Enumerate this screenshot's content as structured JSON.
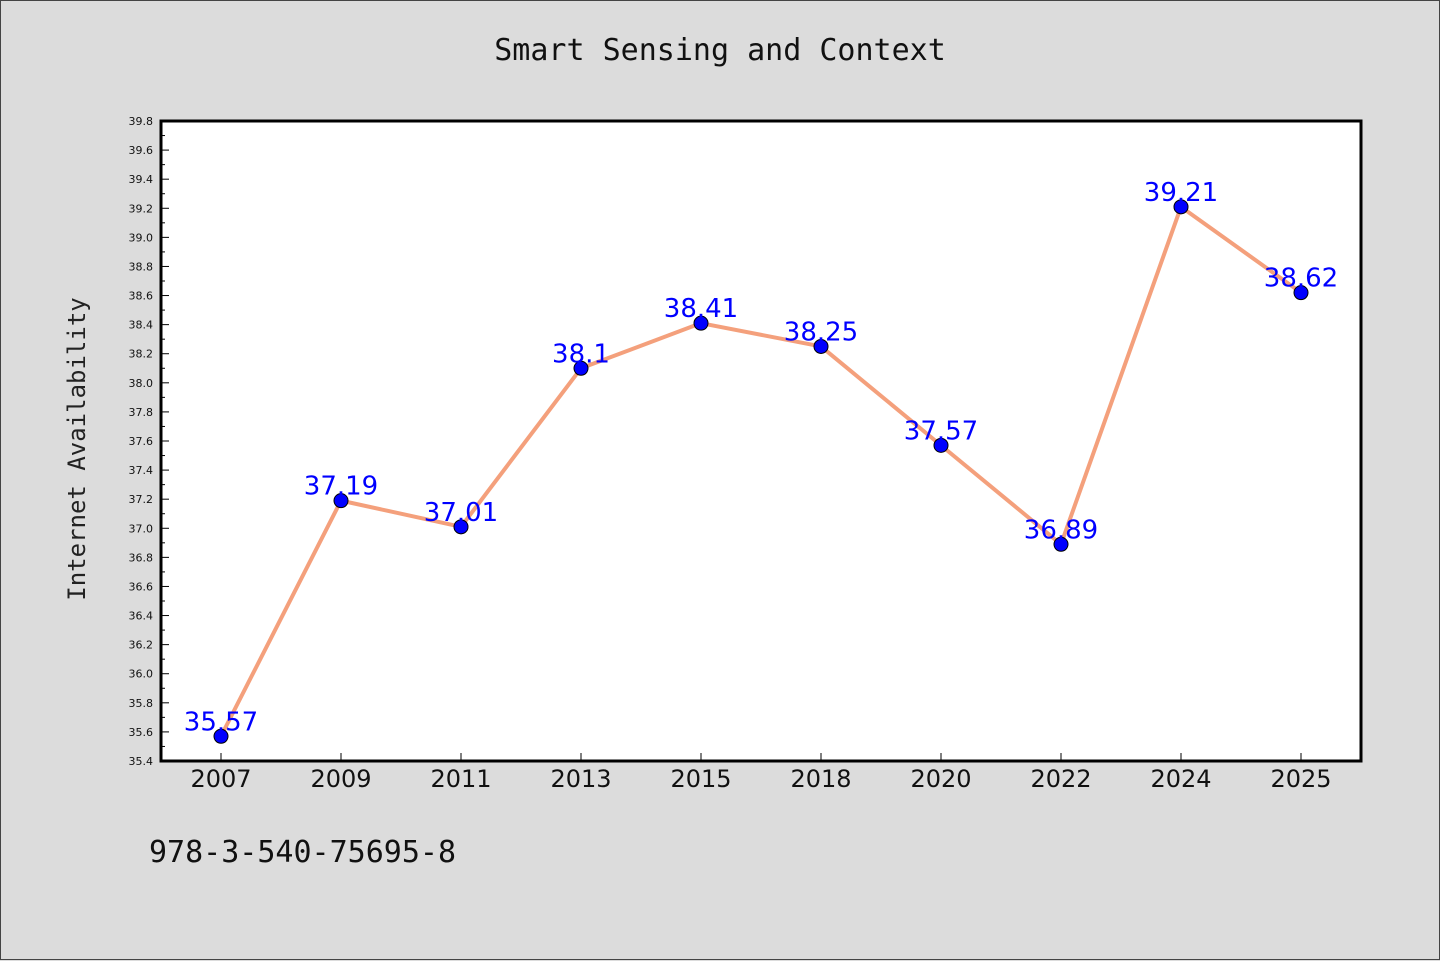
{
  "chart_data": {
    "type": "line",
    "title": "Smart Sensing and Context",
    "xlabel": "",
    "ylabel": "Internet Availability",
    "categories": [
      "2007",
      "2009",
      "2011",
      "2013",
      "2015",
      "2018",
      "2020",
      "2022",
      "2024",
      "2025"
    ],
    "values": [
      35.57,
      37.19,
      37.01,
      38.1,
      38.41,
      38.25,
      37.57,
      36.89,
      39.21,
      38.62
    ],
    "data_labels": [
      "35.57",
      "37.19",
      "37.01",
      "38.1",
      "38.41",
      "38.25",
      "37.57",
      "36.89",
      "39.21",
      "38.62"
    ],
    "ylim": [
      35.4,
      39.8
    ],
    "y_ticks": [
      "35.4",
      "35.6",
      "35.8",
      "36.0",
      "36.2",
      "36.4",
      "36.6",
      "36.8",
      "37.0",
      "37.2",
      "37.4",
      "37.6",
      "37.8",
      "38.0",
      "38.2",
      "38.4",
      "38.6",
      "38.8",
      "39.0",
      "39.2",
      "39.4",
      "39.6",
      "39.8"
    ],
    "grid": false,
    "legend": "none",
    "colors": {
      "line": "#f4a07c",
      "marker": "#0000ff",
      "marker_edge": "#000000",
      "data_label": "#0000ff",
      "plot_background": "#ffffff",
      "figure_background": "#dcdcdc"
    }
  },
  "footer_text": "978-3-540-75695-8"
}
